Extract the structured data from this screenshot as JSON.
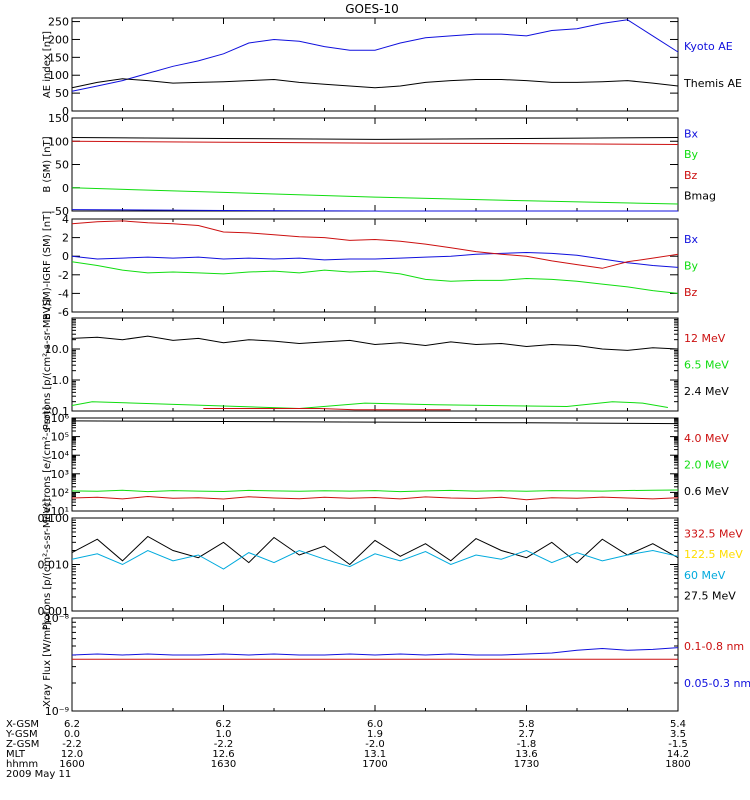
{
  "title": "GOES-10",
  "colors": {
    "black": "#000000",
    "blue": "#1010dd",
    "green": "#10dd10",
    "red": "#cc1010",
    "cyan": "#00aadd",
    "yellow": "#ffdd00"
  },
  "chart_data": [
    {
      "type": "line",
      "ylabel": "AE index [nT]",
      "scale": "linear",
      "ylim": [
        0,
        260
      ],
      "ytick_labels": [
        "0",
        "50",
        "100",
        "150",
        "200",
        "250"
      ],
      "legend": [
        "Kyoto AE",
        "Themis AE"
      ],
      "legend_colors": [
        "blue",
        "black"
      ],
      "series": [
        {
          "name": "Kyoto AE",
          "color": "blue",
          "x": [
            1600,
            1605,
            1610,
            1615,
            1620,
            1625,
            1630,
            1635,
            1640,
            1645,
            1650,
            1655,
            1700,
            1705,
            1710,
            1715,
            1720,
            1725,
            1730,
            1735,
            1740,
            1745,
            1750,
            1755,
            1800
          ],
          "y": [
            55,
            70,
            85,
            105,
            125,
            140,
            160,
            190,
            200,
            195,
            180,
            170,
            170,
            190,
            205,
            210,
            215,
            215,
            210,
            225,
            230,
            245,
            255,
            210,
            165
          ]
        },
        {
          "name": "Themis AE",
          "color": "black",
          "x": [
            1600,
            1605,
            1610,
            1615,
            1620,
            1625,
            1630,
            1635,
            1640,
            1645,
            1650,
            1655,
            1700,
            1705,
            1710,
            1715,
            1720,
            1725,
            1730,
            1735,
            1740,
            1745,
            1750,
            1755,
            1800
          ],
          "y": [
            65,
            80,
            90,
            85,
            78,
            80,
            82,
            85,
            88,
            80,
            75,
            70,
            65,
            70,
            80,
            85,
            88,
            88,
            85,
            80,
            80,
            82,
            85,
            78,
            70
          ]
        }
      ]
    },
    {
      "type": "line",
      "ylabel": "B (SM) [nT]",
      "scale": "linear",
      "ylim": [
        -50,
        150
      ],
      "ytick_labels": [
        "-50",
        "0",
        "50",
        "100",
        "150"
      ],
      "legend": [
        "Bx",
        "By",
        "Bz",
        "Bmag"
      ],
      "legend_colors": [
        "blue",
        "green",
        "red",
        "black"
      ],
      "series": [
        {
          "name": "Bx",
          "color": "blue",
          "x": [
            1600,
            1630,
            1700,
            1730,
            1800
          ],
          "y": [
            -47,
            -49,
            -51,
            -53,
            -54
          ]
        },
        {
          "name": "By",
          "color": "green",
          "x": [
            1600,
            1630,
            1700,
            1730,
            1800
          ],
          "y": [
            0,
            -10,
            -20,
            -28,
            -35
          ]
        },
        {
          "name": "Bz",
          "color": "red",
          "x": [
            1600,
            1630,
            1700,
            1730,
            1800
          ],
          "y": [
            100,
            98,
            96,
            95,
            93
          ]
        },
        {
          "name": "Bmag",
          "color": "black",
          "x": [
            1600,
            1630,
            1700,
            1730,
            1800
          ],
          "y": [
            108,
            106,
            104,
            106,
            108
          ]
        }
      ]
    },
    {
      "type": "line",
      "ylabel": "B (SM)-IGRF (SM) [nT]",
      "scale": "linear",
      "ylim": [
        -6,
        4
      ],
      "ytick_labels": [
        "-6",
        "-4",
        "-2",
        "0",
        "2",
        "4"
      ],
      "legend": [
        "Bx",
        "By",
        "Bz"
      ],
      "legend_colors": [
        "blue",
        "green",
        "red"
      ],
      "series": [
        {
          "name": "Bx",
          "color": "blue",
          "x": [
            1600,
            1605,
            1610,
            1615,
            1620,
            1625,
            1630,
            1635,
            1640,
            1645,
            1650,
            1655,
            1700,
            1705,
            1710,
            1715,
            1720,
            1725,
            1730,
            1735,
            1740,
            1745,
            1750,
            1755,
            1800
          ],
          "y": [
            0,
            -0.3,
            -0.2,
            -0.1,
            -0.2,
            -0.1,
            -0.3,
            -0.2,
            -0.3,
            -0.2,
            -0.4,
            -0.3,
            -0.3,
            -0.2,
            -0.1,
            0,
            0.2,
            0.3,
            0.4,
            0.3,
            0.1,
            -0.3,
            -0.7,
            -1.0,
            -1.2
          ]
        },
        {
          "name": "By",
          "color": "green",
          "x": [
            1600,
            1605,
            1610,
            1615,
            1620,
            1625,
            1630,
            1635,
            1640,
            1645,
            1650,
            1655,
            1700,
            1705,
            1710,
            1715,
            1720,
            1725,
            1730,
            1735,
            1740,
            1745,
            1750,
            1755,
            1800
          ],
          "y": [
            -0.6,
            -1.0,
            -1.5,
            -1.8,
            -1.7,
            -1.8,
            -1.9,
            -1.7,
            -1.6,
            -1.8,
            -1.5,
            -1.7,
            -1.6,
            -1.9,
            -2.5,
            -2.7,
            -2.6,
            -2.6,
            -2.4,
            -2.5,
            -2.7,
            -3.0,
            -3.3,
            -3.7,
            -4.0
          ]
        },
        {
          "name": "Bz",
          "color": "red",
          "x": [
            1600,
            1605,
            1610,
            1615,
            1620,
            1625,
            1630,
            1635,
            1640,
            1645,
            1650,
            1655,
            1700,
            1705,
            1710,
            1715,
            1720,
            1725,
            1730,
            1735,
            1740,
            1745,
            1750,
            1755,
            1800
          ],
          "y": [
            3.5,
            3.7,
            3.8,
            3.6,
            3.5,
            3.3,
            2.6,
            2.5,
            2.3,
            2.1,
            2.0,
            1.7,
            1.8,
            1.6,
            1.3,
            0.9,
            0.5,
            0.2,
            0,
            -0.5,
            -0.9,
            -1.3,
            -0.6,
            -0.2,
            0.2
          ]
        }
      ]
    },
    {
      "type": "line",
      "ylabel": "Protons [p/(cm²-s-sr-MeV)]",
      "scale": "log",
      "ylim": [
        0.1,
        100
      ],
      "ytick_labels": [
        "0.1",
        "1.0",
        "10.0"
      ],
      "ytick_values": [
        0.1,
        1,
        10
      ],
      "legend": [
        "12 MeV",
        "6.5 MeV",
        "2.4 MeV"
      ],
      "legend_colors": [
        "red",
        "green",
        "black"
      ],
      "series": [
        {
          "name": "2.4 MeV",
          "color": "black",
          "x": [
            1600,
            1605,
            1610,
            1615,
            1620,
            1625,
            1630,
            1635,
            1640,
            1645,
            1650,
            1655,
            1700,
            1705,
            1710,
            1715,
            1720,
            1725,
            1730,
            1735,
            1740,
            1745,
            1750,
            1755,
            1800
          ],
          "y": [
            22,
            24,
            20,
            26,
            19,
            22,
            16,
            20,
            18,
            15,
            17,
            19,
            14,
            16,
            13,
            17,
            14,
            15,
            12,
            14,
            13,
            10,
            9,
            11,
            10
          ]
        },
        {
          "name": "6.5 MeV",
          "color": "green",
          "x": [
            1600,
            1604,
            1645,
            1658,
            1712,
            1738,
            1747,
            1753,
            1758
          ],
          "y": [
            0.15,
            0.2,
            0.12,
            0.18,
            0.16,
            0.14,
            0.2,
            0.18,
            0.13
          ]
        },
        {
          "name": "12 MeV",
          "color": "red",
          "x": [
            1626,
            1649,
            1656,
            1715
          ],
          "y": [
            0.12,
            0.12,
            0.11,
            0.11
          ]
        }
      ]
    },
    {
      "type": "line",
      "ylabel": "Electrons [e/(cm²-s-sr)]",
      "scale": "log",
      "ylim": [
        10,
        1000000
      ],
      "ytick_labels": [
        "10¹",
        "10²",
        "10³",
        "10⁴",
        "10⁵",
        "10⁶"
      ],
      "ytick_values": [
        10,
        100,
        1000,
        10000,
        100000,
        1000000
      ],
      "legend": [
        "4.0 MeV",
        "2.0 MeV",
        "0.6 MeV"
      ],
      "legend_colors": [
        "red",
        "green",
        "black"
      ],
      "series": [
        {
          "name": "0.6 MeV",
          "color": "black",
          "x": [
            1600,
            1630,
            1700,
            1730,
            1800
          ],
          "y": [
            700000,
            650000,
            600000,
            550000,
            500000
          ]
        },
        {
          "name": "2.0 MeV",
          "color": "green",
          "x": [
            1600,
            1605,
            1610,
            1615,
            1620,
            1625,
            1630,
            1635,
            1640,
            1645,
            1650,
            1655,
            1700,
            1705,
            1710,
            1715,
            1720,
            1725,
            1730,
            1735,
            1740,
            1745,
            1750,
            1755,
            1800
          ],
          "y": [
            120,
            115,
            130,
            110,
            125,
            118,
            112,
            128,
            120,
            115,
            122,
            118,
            125,
            110,
            120,
            128,
            118,
            122,
            115,
            125,
            120,
            118,
            126,
            130,
            135
          ]
        },
        {
          "name": "4.0 MeV",
          "color": "red",
          "x": [
            1600,
            1605,
            1610,
            1615,
            1620,
            1625,
            1630,
            1635,
            1640,
            1645,
            1650,
            1655,
            1700,
            1705,
            1710,
            1715,
            1720,
            1725,
            1730,
            1735,
            1740,
            1745,
            1750,
            1755,
            1800
          ],
          "y": [
            50,
            55,
            45,
            60,
            48,
            52,
            44,
            58,
            50,
            46,
            55,
            49,
            53,
            45,
            57,
            50,
            47,
            55,
            40,
            52,
            48,
            56,
            50,
            45,
            52
          ]
        }
      ]
    },
    {
      "type": "line",
      "ylabel": "Protons [p/(cm²-s-sr-MeV)]",
      "scale": "log",
      "ylim": [
        0.001,
        0.1
      ],
      "ytick_labels": [
        "0.001",
        "0.010",
        "0.100"
      ],
      "ytick_values": [
        0.001,
        0.01,
        0.1
      ],
      "legend": [
        "332.5 MeV",
        "122.5 MeV",
        "60 MeV",
        "27.5 MeV"
      ],
      "legend_colors": [
        "red",
        "yellow",
        "cyan",
        "black"
      ],
      "series": [
        {
          "name": "27.5 MeV",
          "color": "black",
          "x": [
            1600,
            1605,
            1610,
            1615,
            1620,
            1625,
            1630,
            1635,
            1640,
            1645,
            1650,
            1655,
            1700,
            1705,
            1710,
            1715,
            1720,
            1725,
            1730,
            1735,
            1740,
            1745,
            1750,
            1755,
            1800
          ],
          "y": [
            0.018,
            0.035,
            0.012,
            0.04,
            0.02,
            0.014,
            0.03,
            0.011,
            0.038,
            0.016,
            0.025,
            0.01,
            0.033,
            0.015,
            0.028,
            0.012,
            0.036,
            0.02,
            0.014,
            0.03,
            0.011,
            0.035,
            0.016,
            0.028,
            0.014
          ]
        },
        {
          "name": "60 MeV",
          "color": "cyan",
          "x": [
            1600,
            1605,
            1610,
            1615,
            1620,
            1625,
            1630,
            1635,
            1640,
            1645,
            1650,
            1655,
            1700,
            1705,
            1710,
            1715,
            1720,
            1725,
            1730,
            1735,
            1740,
            1745,
            1750,
            1755,
            1800
          ],
          "y": [
            0.013,
            0.017,
            0.01,
            0.02,
            0.012,
            0.016,
            0.008,
            0.018,
            0.011,
            0.02,
            0.013,
            0.009,
            0.017,
            0.012,
            0.019,
            0.01,
            0.016,
            0.013,
            0.02,
            0.011,
            0.018,
            0.012,
            0.016,
            0.02,
            0.015
          ]
        }
      ]
    },
    {
      "type": "line",
      "ylabel": "Xray Flux [W/m²]",
      "scale": "log",
      "ylim": [
        1e-09,
        1e-08
      ],
      "ytick_labels": [
        "10⁻⁹",
        "10⁻⁸"
      ],
      "ytick_values": [
        1e-09,
        1e-08
      ],
      "legend": [
        "0.1-0.8 nm",
        "0.05-0.3 nm"
      ],
      "legend_colors": [
        "red",
        "blue"
      ],
      "series": [
        {
          "name": "0.05-0.3 nm",
          "color": "blue",
          "x": [
            1600,
            1605,
            1610,
            1615,
            1620,
            1625,
            1630,
            1635,
            1640,
            1645,
            1650,
            1655,
            1700,
            1705,
            1710,
            1715,
            1720,
            1725,
            1730,
            1735,
            1740,
            1745,
            1750,
            1755,
            1800
          ],
          "y": [
            4e-09,
            4.1e-09,
            4e-09,
            4.1e-09,
            4e-09,
            4e-09,
            4.1e-09,
            4e-09,
            4.1e-09,
            4e-09,
            4e-09,
            4.1e-09,
            4e-09,
            4.1e-09,
            4e-09,
            4.1e-09,
            4e-09,
            4e-09,
            4.1e-09,
            4.2e-09,
            4.5e-09,
            4.7e-09,
            4.5e-09,
            4.6e-09,
            4.8e-09
          ]
        },
        {
          "name": "0.1-0.8 nm",
          "color": "red",
          "x": [
            1600,
            1630,
            1700,
            1730,
            1800
          ],
          "y": [
            3.6e-09,
            3.6e-09,
            3.6e-09,
            3.6e-09,
            3.6e-09
          ]
        }
      ]
    }
  ],
  "x_axis": {
    "tick_values": [
      1600,
      1630,
      1700,
      1730,
      1800
    ],
    "rows": [
      {
        "label": "X-GSM",
        "values": [
          "6.2",
          "6.2",
          "6.0",
          "5.8",
          "5.4"
        ]
      },
      {
        "label": "Y-GSM",
        "values": [
          "0.0",
          "1.0",
          "1.9",
          "2.7",
          "3.5"
        ]
      },
      {
        "label": "Z-GSM",
        "values": [
          "-2.2",
          "-2.2",
          "-2.0",
          "-1.8",
          "-1.5"
        ]
      },
      {
        "label": "MLT",
        "values": [
          "12.0",
          "12.6",
          "13.1",
          "13.6",
          "14.2"
        ]
      },
      {
        "label": "hhmm",
        "values": [
          "1600",
          "1630",
          "1700",
          "1730",
          "1800"
        ]
      }
    ],
    "date": "2009 May 11"
  }
}
